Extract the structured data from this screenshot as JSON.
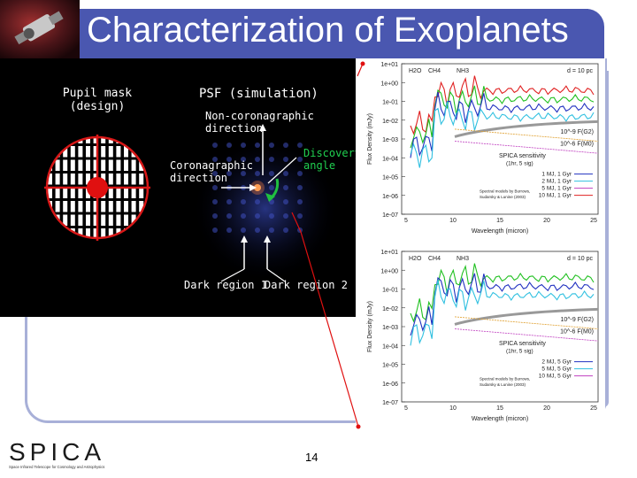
{
  "slide": {
    "title": "Characterization of Exoplanets",
    "page_number": "14"
  },
  "left_panel": {
    "pupil_label_1": "Pupil mask",
    "pupil_label_2": "(design)",
    "psf_label": "PSF (simulation)",
    "non_coro_1": "Non-coronagraphic",
    "non_coro_2": "direction",
    "coro_1": "Coronagraphic",
    "coro_2": "direction",
    "disc_1": "Discovery",
    "disc_2": "angle",
    "dark1": "Dark region 1",
    "dark2": "Dark region 2"
  },
  "logo": {
    "text": "SPICA",
    "subtitle": "Space Infrared Telescope for Cosmology and Astrophysics"
  },
  "plot_common": {
    "mol_h2o": "H2O",
    "mol_ch4": "CH4",
    "mol_nh3": "NH3",
    "distance": "d = 10 pc",
    "xlabel": "Wavelength (micron)",
    "ylabel": "Flux Density (mJy)",
    "yticks": [
      "1e+01",
      "1e+00",
      "1e-01",
      "1e-02",
      "1e-03",
      "1e-04",
      "1e-05",
      "1e-06",
      "1e-07"
    ],
    "xticks": [
      "5",
      "10",
      "15",
      "20",
      "25"
    ],
    "f_g2": "10^-9 F(G2)",
    "f_m0": "10^-6 F(M0)",
    "sens_1": "SPICA sensitivity",
    "sens_2": "(1hr, 5 sig)"
  },
  "plot_top": {
    "legend": [
      "1 MJ, 1 Gyr",
      "2 MJ, 1 Gyr",
      "5 MJ, 1 Gyr",
      "10 MJ, 1 Gyr"
    ],
    "models_1": "Spectral models by Burrows,",
    "models_2": "Sudarsky & Lunine (2003)"
  },
  "plot_bottom": {
    "legend": [
      "2 MJ, 5 Gyr",
      "5 MJ, 5 Gyr",
      "10 MJ, 5 Gyr"
    ],
    "models_1": "Spectral models by Burrows,",
    "models_2": "Sudarsky & Lunine (2003)"
  },
  "colors": {
    "title_bar": "#4a57b0",
    "frame": "#a8b0d8",
    "pupil_red": "#d81818",
    "green_arrow": "#20c040"
  }
}
